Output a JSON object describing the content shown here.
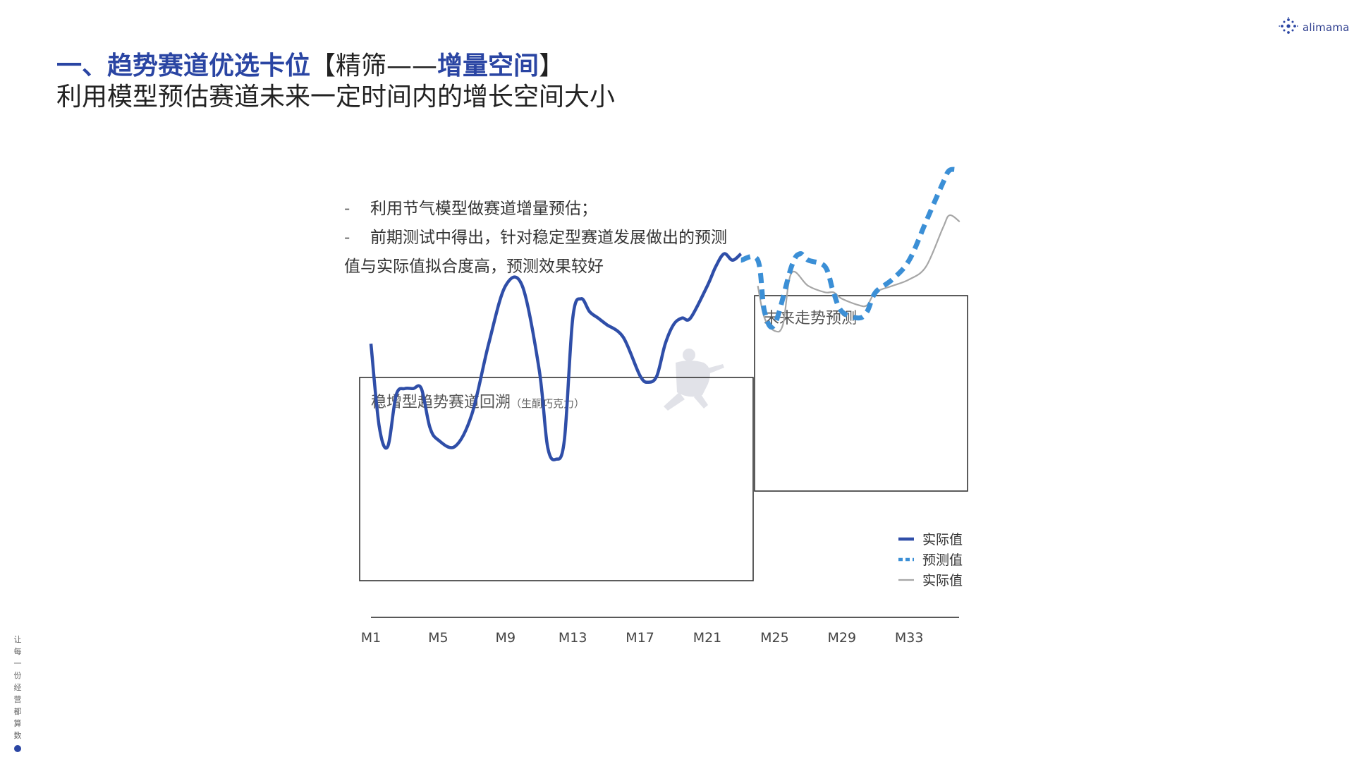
{
  "logo": {
    "text": "alimama",
    "icon": "alimama-sparkle-icon"
  },
  "title": {
    "line1_main": "一、趋势赛道优选卡位",
    "line1_bracket_open": "【",
    "line1_mid": "精筛——",
    "line1_highlight": "增量空间",
    "line1_bracket_close": "】",
    "line2": "利用模型预估赛道未来一定时间内的增长空间大小"
  },
  "bullets": [
    {
      "dash": "-",
      "lines": [
        "利用节气模型做赛道增量预估；"
      ]
    },
    {
      "dash": "-",
      "lines": [
        "前期测试中得出，针对稳定型赛道发展做出的预测",
        "值与实际值拟合度高，预测效果较好"
      ]
    }
  ],
  "side_slogan": "让每一份经营都算数",
  "colors": {
    "brand": "#2a45a3",
    "actual": "#2f4ea8",
    "predicted": "#3b8fd6",
    "reference": "#a6a6a6"
  },
  "chart_data": {
    "type": "line",
    "x_ticks": [
      "M1",
      "M5",
      "M9",
      "M13",
      "M17",
      "M21",
      "M25",
      "M29",
      "M33"
    ],
    "panels": [
      {
        "label": "稳增型趋势赛道回溯",
        "sublabel": "（生酮巧克力）"
      },
      {
        "label": "未来走势预测"
      }
    ],
    "legend": {
      "placement": "bottom-right",
      "entries": [
        "实际值",
        "预测值",
        "实际值"
      ]
    },
    "series": [
      {
        "name": "实际值",
        "style": "solid-thick",
        "color": "#2f4ea8",
        "x": [
          1,
          1.5,
          2,
          2.5,
          3,
          3.5,
          4,
          4.5,
          5,
          6,
          7,
          8,
          9,
          10,
          11,
          11.5,
          12,
          12.5,
          13,
          13.5,
          14,
          14.5,
          15,
          16,
          17,
          17.5,
          18,
          18.5,
          19,
          19.5,
          20,
          21,
          21.5,
          22,
          22.5,
          23
        ],
        "y": [
          49,
          36,
          33,
          41,
          42,
          42,
          42,
          36,
          34,
          33,
          38,
          49,
          58,
          58,
          45,
          33,
          31,
          34,
          53,
          56,
          54,
          53,
          52,
          50,
          44,
          43,
          44,
          49,
          52,
          53,
          53,
          58,
          61,
          63,
          62,
          63
        ]
      },
      {
        "name": "预测值",
        "style": "dashed-thick",
        "color": "#3b8fd6",
        "x": [
          23,
          24,
          24.4,
          25,
          26,
          26.5,
          27,
          28,
          28.5,
          29,
          30,
          30.5,
          31,
          32,
          33,
          34,
          35,
          35.4,
          36
        ],
        "y": [
          62,
          62,
          54,
          52,
          61,
          63,
          62,
          61,
          57,
          54,
          53,
          54,
          57,
          59,
          62,
          68,
          74,
          76,
          76
        ]
      },
      {
        "name": "实际值",
        "style": "solid-thin",
        "color": "#a6a6a6",
        "x": [
          24,
          24.4,
          25,
          25.5,
          26,
          27,
          28,
          28.5,
          29,
          30,
          30.5,
          31,
          32,
          33,
          34,
          35,
          35.4,
          36
        ],
        "y": [
          58,
          53,
          51,
          52,
          60,
          58,
          57,
          57,
          56,
          55,
          55,
          57,
          58,
          59,
          61,
          67,
          69,
          68
        ]
      }
    ]
  }
}
